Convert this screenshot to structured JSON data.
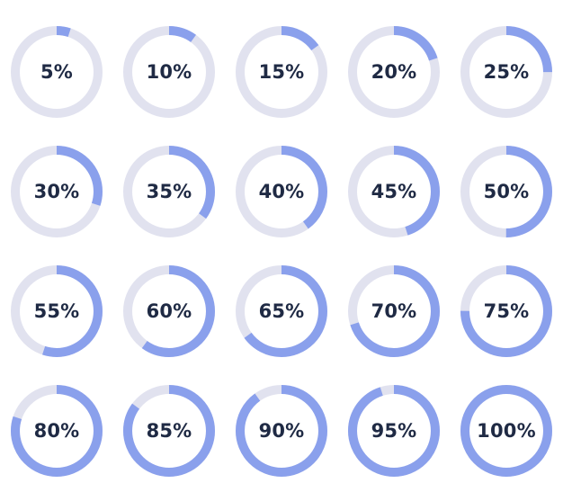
{
  "colors": {
    "track": "#e1e2ef",
    "progress": "#8aa0ec",
    "text": "#1f2a44"
  },
  "rings": [
    {
      "label": "5%",
      "value": 5
    },
    {
      "label": "10%",
      "value": 10
    },
    {
      "label": "15%",
      "value": 15
    },
    {
      "label": "20%",
      "value": 20
    },
    {
      "label": "25%",
      "value": 25
    },
    {
      "label": "30%",
      "value": 30
    },
    {
      "label": "35%",
      "value": 35
    },
    {
      "label": "40%",
      "value": 40
    },
    {
      "label": "45%",
      "value": 45
    },
    {
      "label": "50%",
      "value": 50
    },
    {
      "label": "55%",
      "value": 55
    },
    {
      "label": "60%",
      "value": 60
    },
    {
      "label": "65%",
      "value": 65
    },
    {
      "label": "70%",
      "value": 70
    },
    {
      "label": "75%",
      "value": 75
    },
    {
      "label": "80%",
      "value": 80
    },
    {
      "label": "85%",
      "value": 85
    },
    {
      "label": "90%",
      "value": 90
    },
    {
      "label": "95%",
      "value": 95
    },
    {
      "label": "100%",
      "value": 100
    }
  ]
}
